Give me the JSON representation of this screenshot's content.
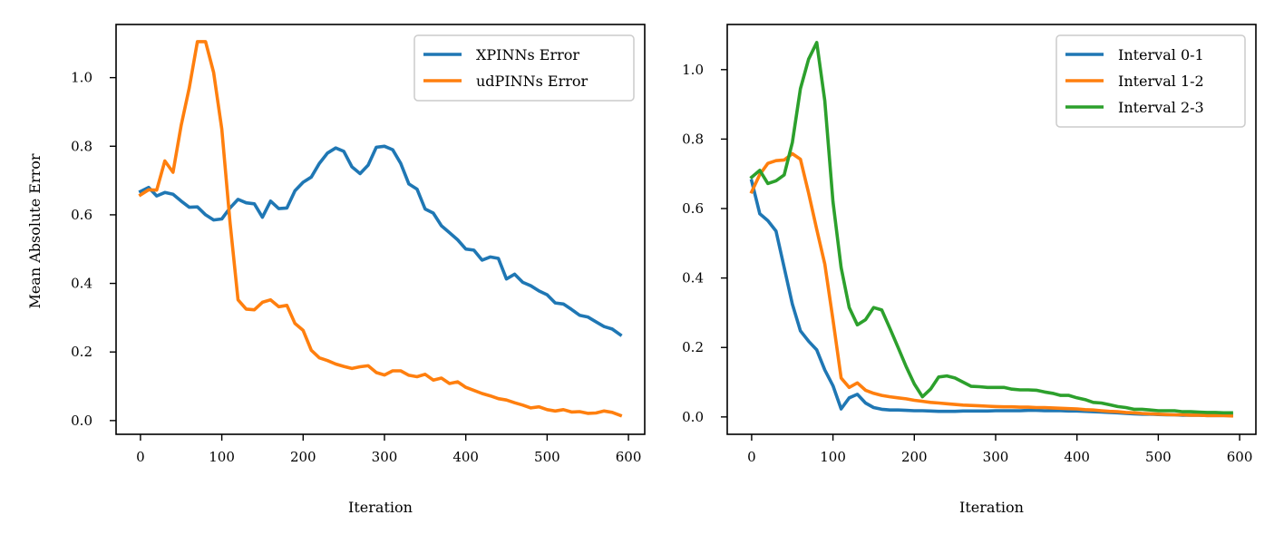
{
  "chart_data": [
    {
      "type": "line",
      "xlabel": "Iteration",
      "ylabel": "Mean Absolute Error",
      "xlim": [
        -30,
        620
      ],
      "ylim": [
        -0.04,
        1.155
      ],
      "xticks": [
        0,
        100,
        200,
        300,
        400,
        500,
        600
      ],
      "yticks": [
        0.0,
        0.2,
        0.4,
        0.6,
        0.8,
        1.0
      ],
      "xtick_labels": [
        "0",
        "100",
        "200",
        "300",
        "400",
        "500",
        "600"
      ],
      "ytick_labels": [
        "0.0",
        "0.2",
        "0.4",
        "0.6",
        "0.8",
        "1.0"
      ],
      "legend_position": "top-right",
      "grid": false,
      "x": [
        0,
        10,
        20,
        30,
        40,
        50,
        60,
        70,
        80,
        90,
        100,
        110,
        120,
        130,
        140,
        150,
        160,
        170,
        180,
        190,
        200,
        210,
        220,
        230,
        240,
        250,
        260,
        270,
        280,
        290,
        300,
        310,
        320,
        330,
        340,
        350,
        360,
        370,
        380,
        390,
        400,
        410,
        420,
        430,
        440,
        450,
        460,
        470,
        480,
        490,
        500,
        510,
        520,
        530,
        540,
        550,
        560,
        570,
        580,
        590
      ],
      "series": [
        {
          "name": "XPINNs Error",
          "color": "#1f77b4",
          "values": [
            0.668,
            0.68,
            0.655,
            0.665,
            0.66,
            0.64,
            0.622,
            0.623,
            0.6,
            0.585,
            0.588,
            0.62,
            0.645,
            0.635,
            0.632,
            0.593,
            0.64,
            0.618,
            0.62,
            0.67,
            0.695,
            0.71,
            0.75,
            0.78,
            0.795,
            0.785,
            0.74,
            0.72,
            0.745,
            0.797,
            0.8,
            0.79,
            0.75,
            0.69,
            0.675,
            0.617,
            0.605,
            0.568,
            0.548,
            0.527,
            0.5,
            0.497,
            0.468,
            0.477,
            0.473,
            0.413,
            0.427,
            0.403,
            0.393,
            0.378,
            0.367,
            0.343,
            0.34,
            0.324,
            0.307,
            0.302,
            0.288,
            0.274,
            0.267,
            0.25
          ]
        },
        {
          "name": "udPINNs Error",
          "color": "#ff7f0e",
          "values": [
            0.658,
            0.673,
            0.672,
            0.757,
            0.724,
            0.861,
            0.97,
            1.105,
            1.105,
            1.015,
            0.85,
            0.58,
            0.352,
            0.325,
            0.323,
            0.345,
            0.352,
            0.332,
            0.336,
            0.283,
            0.263,
            0.205,
            0.183,
            0.175,
            0.165,
            0.158,
            0.152,
            0.157,
            0.16,
            0.14,
            0.133,
            0.145,
            0.145,
            0.132,
            0.128,
            0.135,
            0.118,
            0.124,
            0.108,
            0.113,
            0.097,
            0.088,
            0.079,
            0.072,
            0.064,
            0.06,
            0.052,
            0.045,
            0.037,
            0.04,
            0.032,
            0.028,
            0.032,
            0.025,
            0.026,
            0.021,
            0.022,
            0.028,
            0.024,
            0.015
          ]
        }
      ]
    },
    {
      "type": "line",
      "xlabel": "Iteration",
      "ylabel": "",
      "xlim": [
        -30,
        620
      ],
      "ylim": [
        -0.05,
        1.13
      ],
      "xticks": [
        0,
        100,
        200,
        300,
        400,
        500,
        600
      ],
      "yticks": [
        0.0,
        0.2,
        0.4,
        0.6,
        0.8,
        1.0
      ],
      "xtick_labels": [
        "0",
        "100",
        "200",
        "300",
        "400",
        "500",
        "600"
      ],
      "ytick_labels": [
        "0.0",
        "0.2",
        "0.4",
        "0.6",
        "0.8",
        "1.0"
      ],
      "legend_position": "top-right",
      "grid": false,
      "x": [
        0,
        10,
        20,
        30,
        40,
        50,
        60,
        70,
        80,
        90,
        100,
        110,
        120,
        130,
        140,
        150,
        160,
        170,
        180,
        190,
        200,
        210,
        220,
        230,
        240,
        250,
        260,
        270,
        280,
        290,
        300,
        310,
        320,
        330,
        340,
        350,
        360,
        370,
        380,
        390,
        400,
        410,
        420,
        430,
        440,
        450,
        460,
        470,
        480,
        490,
        500,
        510,
        520,
        530,
        540,
        550,
        560,
        570,
        580,
        590
      ],
      "series": [
        {
          "name": "Interval 0-1",
          "color": "#1f77b4",
          "values": [
            0.68,
            0.585,
            0.565,
            0.535,
            0.43,
            0.325,
            0.248,
            0.218,
            0.193,
            0.135,
            0.09,
            0.023,
            0.055,
            0.065,
            0.04,
            0.027,
            0.022,
            0.02,
            0.02,
            0.019,
            0.018,
            0.018,
            0.017,
            0.016,
            0.016,
            0.016,
            0.017,
            0.017,
            0.017,
            0.017,
            0.018,
            0.018,
            0.018,
            0.018,
            0.019,
            0.019,
            0.018,
            0.018,
            0.018,
            0.017,
            0.017,
            0.016,
            0.015,
            0.014,
            0.013,
            0.012,
            0.01,
            0.009,
            0.008,
            0.008,
            0.007,
            0.006,
            0.006,
            0.005,
            0.005,
            0.005,
            0.004,
            0.004,
            0.004,
            0.004
          ]
        },
        {
          "name": "Interval 1-2",
          "color": "#ff7f0e",
          "values": [
            0.648,
            0.698,
            0.73,
            0.738,
            0.74,
            0.758,
            0.742,
            0.645,
            0.54,
            0.44,
            0.28,
            0.112,
            0.085,
            0.098,
            0.077,
            0.068,
            0.062,
            0.058,
            0.055,
            0.052,
            0.048,
            0.045,
            0.042,
            0.04,
            0.038,
            0.036,
            0.034,
            0.033,
            0.032,
            0.031,
            0.03,
            0.029,
            0.029,
            0.028,
            0.028,
            0.027,
            0.027,
            0.026,
            0.025,
            0.024,
            0.023,
            0.021,
            0.02,
            0.018,
            0.016,
            0.015,
            0.013,
            0.012,
            0.01,
            0.009,
            0.008,
            0.007,
            0.006,
            0.006,
            0.005,
            0.005,
            0.004,
            0.004,
            0.004,
            0.003
          ]
        },
        {
          "name": "Interval 2-3",
          "color": "#2ca02c",
          "values": [
            0.69,
            0.71,
            0.672,
            0.68,
            0.697,
            0.79,
            0.945,
            1.03,
            1.078,
            0.91,
            0.62,
            0.43,
            0.315,
            0.265,
            0.28,
            0.315,
            0.308,
            0.255,
            0.2,
            0.145,
            0.095,
            0.058,
            0.08,
            0.115,
            0.118,
            0.112,
            0.1,
            0.088,
            0.087,
            0.085,
            0.085,
            0.085,
            0.08,
            0.078,
            0.078,
            0.077,
            0.072,
            0.068,
            0.062,
            0.062,
            0.055,
            0.05,
            0.042,
            0.04,
            0.035,
            0.03,
            0.027,
            0.022,
            0.022,
            0.02,
            0.018,
            0.018,
            0.018,
            0.015,
            0.015,
            0.014,
            0.013,
            0.013,
            0.012,
            0.012
          ]
        }
      ]
    }
  ]
}
